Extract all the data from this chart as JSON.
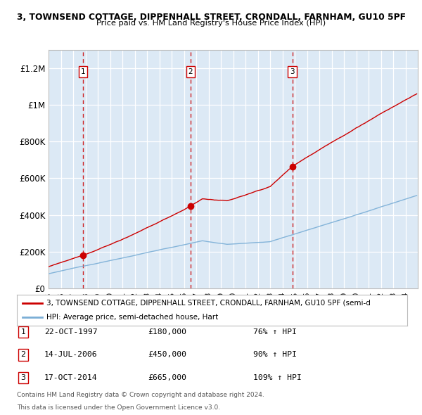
{
  "title1": "3, TOWNSEND COTTAGE, DIPPENHALL STREET, CRONDALL, FARNHAM, GU10 5PF",
  "title2": "Price paid vs. HM Land Registry's House Price Index (HPI)",
  "background_color": "#dce9f5",
  "plot_bg_color": "#dce9f5",
  "red_line_color": "#cc0000",
  "blue_line_color": "#7aaed6",
  "transactions": [
    {
      "num": 1,
      "date_str": "22-OCT-1997",
      "year": 1997.8,
      "price": 180000,
      "pct": "76%",
      "dir": "↑"
    },
    {
      "num": 2,
      "date_str": "14-JUL-2006",
      "year": 2006.54,
      "price": 450000,
      "pct": "90%",
      "dir": "↑"
    },
    {
      "num": 3,
      "date_str": "17-OCT-2014",
      "year": 2014.8,
      "price": 665000,
      "pct": "109%",
      "dir": "↑"
    }
  ],
  "legend_label_red": "3, TOWNSEND COTTAGE, DIPPENHALL STREET, CRONDALL, FARNHAM, GU10 5PF (semi-d",
  "legend_label_blue": "HPI: Average price, semi-detached house, Hart",
  "footer1": "Contains HM Land Registry data © Crown copyright and database right 2024.",
  "footer2": "This data is licensed under the Open Government Licence v3.0.",
  "ylim": [
    0,
    1300000
  ],
  "yticks": [
    0,
    200000,
    400000,
    600000,
    800000,
    1000000,
    1200000
  ],
  "ytick_labels": [
    "£0",
    "£200K",
    "£400K",
    "£600K",
    "£800K",
    "£1M",
    "£1.2M"
  ],
  "xmin": 1995,
  "xmax": 2025
}
